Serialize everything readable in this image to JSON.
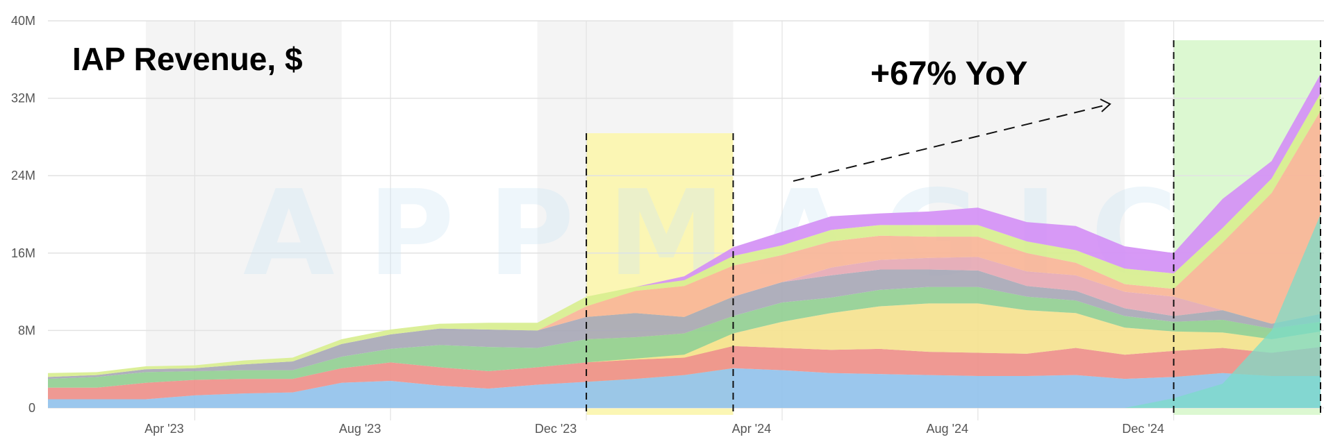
{
  "chart_data": {
    "type": "area",
    "stacked": true,
    "title": "IAP Revenue, $",
    "annotation": "+67% YoY",
    "watermark": "APPMAGIC",
    "ylim": [
      0,
      40000000
    ],
    "y_ticks": [
      {
        "value": 0,
        "label": "0"
      },
      {
        "value": 8000000,
        "label": "8M"
      },
      {
        "value": 16000000,
        "label": "16M"
      },
      {
        "value": 24000000,
        "label": "24M"
      },
      {
        "value": 32000000,
        "label": "32M"
      },
      {
        "value": 40000000,
        "label": "40M"
      }
    ],
    "x_ticks": [
      {
        "label": "Apr '23",
        "date": "2023-04"
      },
      {
        "label": "Aug '23",
        "date": "2023-08"
      },
      {
        "label": "Dec '23",
        "date": "2023-12"
      },
      {
        "label": "Apr '24",
        "date": "2024-04"
      },
      {
        "label": "Aug '24",
        "date": "2024-08"
      },
      {
        "label": "Dec '24",
        "date": "2024-12"
      }
    ],
    "x": [
      "2023-01",
      "2023-02",
      "2023-03",
      "2023-04",
      "2023-05",
      "2023-06",
      "2023-07",
      "2023-08",
      "2023-09",
      "2023-10",
      "2023-11",
      "2023-12",
      "2024-01",
      "2024-02",
      "2024-03",
      "2024-04",
      "2024-05",
      "2024-06",
      "2024-07",
      "2024-08",
      "2024-09",
      "2024-10",
      "2024-11",
      "2024-12",
      "2025-01",
      "2025-02",
      "2025-03"
    ],
    "series": [
      {
        "color": "#92c2ec",
        "values": [
          0.9,
          0.9,
          0.9,
          1.3,
          1.5,
          1.6,
          2.6,
          2.8,
          2.3,
          2.0,
          2.4,
          2.7,
          3.0,
          3.4,
          4.1,
          3.9,
          3.6,
          3.5,
          3.4,
          3.3,
          3.3,
          3.4,
          3.0,
          3.2,
          3.6,
          3.3,
          3.3
        ]
      },
      {
        "color": "#ee908a",
        "values": [
          1.2,
          1.2,
          1.7,
          1.6,
          1.5,
          1.4,
          1.5,
          1.9,
          1.9,
          1.8,
          1.8,
          2.0,
          2.0,
          1.8,
          2.3,
          2.3,
          2.4,
          2.6,
          2.4,
          2.4,
          2.3,
          2.8,
          2.5,
          2.7,
          2.6,
          2.4,
          3.0
        ]
      },
      {
        "color": "#f5e28f",
        "values": [
          0.0,
          0.0,
          0.0,
          0.0,
          0.0,
          0.0,
          0.0,
          0.0,
          0.0,
          0.0,
          0.0,
          0.0,
          0.1,
          0.3,
          1.3,
          2.7,
          3.8,
          4.4,
          5.0,
          5.1,
          4.5,
          3.6,
          2.8,
          2.0,
          1.6,
          1.4,
          1.6
        ]
      },
      {
        "color": "#93cf92",
        "values": [
          0.9,
          1.1,
          1.1,
          0.9,
          0.9,
          0.9,
          1.2,
          1.4,
          2.3,
          2.5,
          2.0,
          2.4,
          2.2,
          2.2,
          1.8,
          2.0,
          1.6,
          1.7,
          1.7,
          1.7,
          1.4,
          1.3,
          1.2,
          1.0,
          1.3,
          1.1,
          1.0
        ]
      },
      {
        "color": "#a8a8b6",
        "values": [
          0.2,
          0.2,
          0.3,
          0.3,
          0.6,
          0.9,
          1.3,
          1.5,
          1.7,
          1.8,
          1.8,
          2.3,
          2.5,
          1.7,
          2.0,
          2.1,
          2.3,
          2.1,
          1.8,
          1.7,
          1.1,
          1.0,
          0.8,
          0.6,
          1.0,
          0.5,
          0.8
        ]
      },
      {
        "color": "#e6a9b4",
        "values": [
          0.0,
          0.0,
          0.0,
          0.0,
          0.0,
          0.0,
          0.0,
          0.0,
          0.0,
          0.0,
          0.0,
          0.0,
          0.0,
          0.0,
          0.0,
          0.0,
          0.8,
          1.0,
          1.2,
          1.4,
          1.5,
          1.6,
          1.7,
          2.0,
          0.0,
          0.0,
          0.0
        ]
      },
      {
        "color": "#f8b597",
        "values": [
          0.0,
          0.0,
          0.0,
          0.0,
          0.0,
          0.0,
          0.0,
          0.0,
          0.0,
          0.0,
          0.0,
          1.1,
          2.3,
          3.2,
          3.2,
          2.8,
          2.7,
          2.5,
          2.2,
          2.1,
          1.9,
          1.3,
          0.8,
          0.8,
          7.0,
          13.5,
          21.0
        ]
      },
      {
        "color": "#d8ee8f",
        "values": [
          0.4,
          0.3,
          0.3,
          0.3,
          0.4,
          0.4,
          0.5,
          0.5,
          0.5,
          0.7,
          0.8,
          1.0,
          0.4,
          0.6,
          1.0,
          1.0,
          1.2,
          1.1,
          1.2,
          1.2,
          1.2,
          1.3,
          1.6,
          1.6,
          1.5,
          1.5,
          1.8
        ]
      },
      {
        "color": "#d490f5",
        "values": [
          0.0,
          0.0,
          0.0,
          0.0,
          0.0,
          0.0,
          0.0,
          0.0,
          0.0,
          0.0,
          0.0,
          0.0,
          0.0,
          0.4,
          0.9,
          1.4,
          1.4,
          1.2,
          1.4,
          1.8,
          2.0,
          2.5,
          2.3,
          2.1,
          3.0,
          1.8,
          2.0
        ]
      }
    ]
  },
  "highlights": [
    {
      "color": "#fbf6b4",
      "from": "2023-12",
      "to": "2024-03"
    },
    {
      "color": "#dcf8d1",
      "from": "2024-12",
      "to": "2025-03"
    }
  ],
  "overlay_teal": {
    "color": "#7cdcc8",
    "values": [
      0,
      1.0,
      2.5,
      8.0,
      20.0
    ]
  }
}
